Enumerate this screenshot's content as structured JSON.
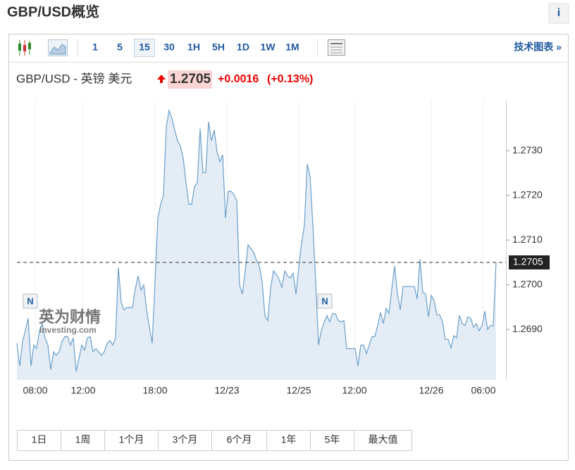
{
  "page": {
    "title": "GBP/USD概览",
    "info": "i"
  },
  "toolbar": {
    "buttons": [
      "1",
      "5",
      "15",
      "30",
      "1H",
      "5H",
      "1D",
      "1W",
      "1M"
    ],
    "link": "技术图表 »"
  },
  "quote": {
    "name": "GBP/USD - 英镑 美元",
    "price": "1.2705",
    "change": "+0.0016",
    "percent": "(+0.13%)"
  },
  "watermark": {
    "brand": "英为财情",
    "site": "Investing.com"
  },
  "markers": [
    "N",
    "N"
  ],
  "ranges": [
    "1日",
    "1周",
    "1个月",
    "3个月",
    "6个月",
    "1年",
    "5年",
    "最大值"
  ],
  "chart_data": {
    "type": "line",
    "color": "#6b9fca",
    "fill": "#e4edf6",
    "grid": true,
    "x": [
      0,
      1,
      2,
      3,
      4,
      5,
      6,
      7,
      8,
      9,
      10,
      11,
      12,
      13,
      14,
      15,
      16,
      17,
      18,
      19,
      20,
      21,
      22,
      23,
      24,
      25,
      26,
      27,
      28,
      29,
      30,
      31,
      32,
      33,
      34,
      35,
      36,
      37,
      38,
      39,
      40,
      41,
      42,
      43,
      44,
      45,
      46,
      47,
      48,
      49,
      50,
      51,
      52,
      53,
      54,
      55,
      56,
      57,
      58,
      59,
      60,
      61,
      62,
      63,
      64,
      65,
      66,
      67,
      68,
      69,
      70,
      71,
      72,
      73,
      74,
      75,
      76,
      77,
      78,
      79,
      80,
      81,
      82,
      83,
      84,
      85,
      86,
      87,
      88,
      89,
      90,
      91,
      92,
      93,
      94,
      95,
      96,
      97,
      98,
      99,
      100,
      101,
      102,
      103,
      104,
      105,
      106,
      107,
      108,
      109,
      110,
      111,
      112,
      113,
      114,
      115,
      116,
      117,
      118,
      119,
      120,
      121,
      122,
      123,
      124,
      125,
      126,
      127,
      128,
      129,
      130,
      131,
      132,
      133,
      134,
      135,
      136,
      137,
      138,
      139,
      140,
      141,
      142,
      143,
      144,
      145,
      146,
      147,
      148,
      149,
      150,
      151,
      152,
      153,
      154,
      155,
      156,
      157,
      158,
      159,
      160,
      161,
      162,
      163,
      164,
      165,
      166,
      167,
      168,
      169,
      170
    ],
    "values": [
      1.26869,
      1.26818,
      1.26873,
      1.26897,
      1.26925,
      1.26818,
      1.26865,
      1.26857,
      1.26897,
      1.26913,
      1.26881,
      1.26865,
      1.2681,
      1.2685,
      1.26842,
      1.2685,
      1.26873,
      1.26884,
      1.26884,
      1.26865,
      1.26881,
      1.26806,
      1.26834,
      1.26865,
      1.26854,
      1.26881,
      1.26884,
      1.2685,
      1.26857,
      1.2685,
      1.26842,
      1.2685,
      1.26869,
      1.26875,
      1.26865,
      1.26881,
      1.27039,
      1.2696,
      1.26944,
      1.26949,
      1.26949,
      1.26949,
      1.26991,
      1.2702,
      1.26988,
      1.26999,
      1.26944,
      1.26905,
      1.26869,
      1.27007,
      1.27149,
      1.2718,
      1.27201,
      1.27354,
      1.2739,
      1.27372,
      1.27346,
      1.27322,
      1.27311,
      1.27283,
      1.27228,
      1.2718,
      1.2718,
      1.2722,
      1.27228,
      1.27349,
      1.27251,
      1.27251,
      1.27365,
      1.27322,
      1.27346,
      1.27298,
      1.27275,
      1.27291,
      1.27149,
      1.27209,
      1.27209,
      1.27202,
      1.27188,
      1.26999,
      1.26979,
      1.27031,
      1.27089,
      1.27081,
      1.27073,
      1.27054,
      1.27042,
      1.27007,
      1.26931,
      1.2692,
      1.26991,
      1.27031,
      1.27023,
      1.27012,
      1.26994,
      1.27031,
      1.2702,
      1.27015,
      1.27026,
      1.26979,
      1.27039,
      1.27094,
      1.27133,
      1.2727,
      1.27243,
      1.27133,
      1.27007,
      1.26865,
      1.26897,
      1.26916,
      1.26931,
      1.26917,
      1.26936,
      1.26935,
      1.2692,
      1.26917,
      1.2692,
      1.26857,
      1.26857,
      1.26857,
      1.26857,
      1.26818,
      1.26865,
      1.26865,
      1.26846,
      1.26865,
      1.26884,
      1.26884,
      1.26909,
      1.26938,
      1.26913,
      1.26947,
      1.26936,
      1.26991,
      1.27042,
      1.26979,
      1.26944,
      1.26996,
      1.26996,
      1.26996,
      1.26996,
      1.26996,
      1.26968,
      1.27057,
      1.26983,
      1.26979,
      1.26928,
      1.26976,
      1.26965,
      1.26933,
      1.26933,
      1.26917,
      1.26878,
      1.26878,
      1.26859,
      1.26886,
      1.26881,
      1.26931,
      1.26913,
      1.26909,
      1.26928,
      1.26925,
      1.26905,
      1.26913,
      1.26897,
      1.26908,
      1.26941,
      1.269,
      1.26909,
      1.26908,
      1.2705
    ],
    "xlim": [
      0,
      173.5
    ],
    "xticks": [
      {
        "value": 6.5,
        "label": "08:00"
      },
      {
        "value": 23.5,
        "label": "12:00"
      },
      {
        "value": 49,
        "label": "18:00"
      },
      {
        "value": 74.5,
        "label": "12/23"
      },
      {
        "value": 100,
        "label": "12/25"
      },
      {
        "value": 119.75,
        "label": "12:00"
      },
      {
        "value": 147,
        "label": "12/26"
      },
      {
        "value": 165.5,
        "label": "06:00"
      }
    ],
    "ylim": [
      1.26787,
      1.27412
    ],
    "yticks": [
      {
        "value": 1.269,
        "label": "1.2690"
      },
      {
        "value": 1.27,
        "label": "1.2700"
      },
      {
        "value": 1.271,
        "label": "1.2710"
      },
      {
        "value": 1.272,
        "label": "1.2720"
      },
      {
        "value": 1.273,
        "label": "1.2730"
      }
    ]
  }
}
